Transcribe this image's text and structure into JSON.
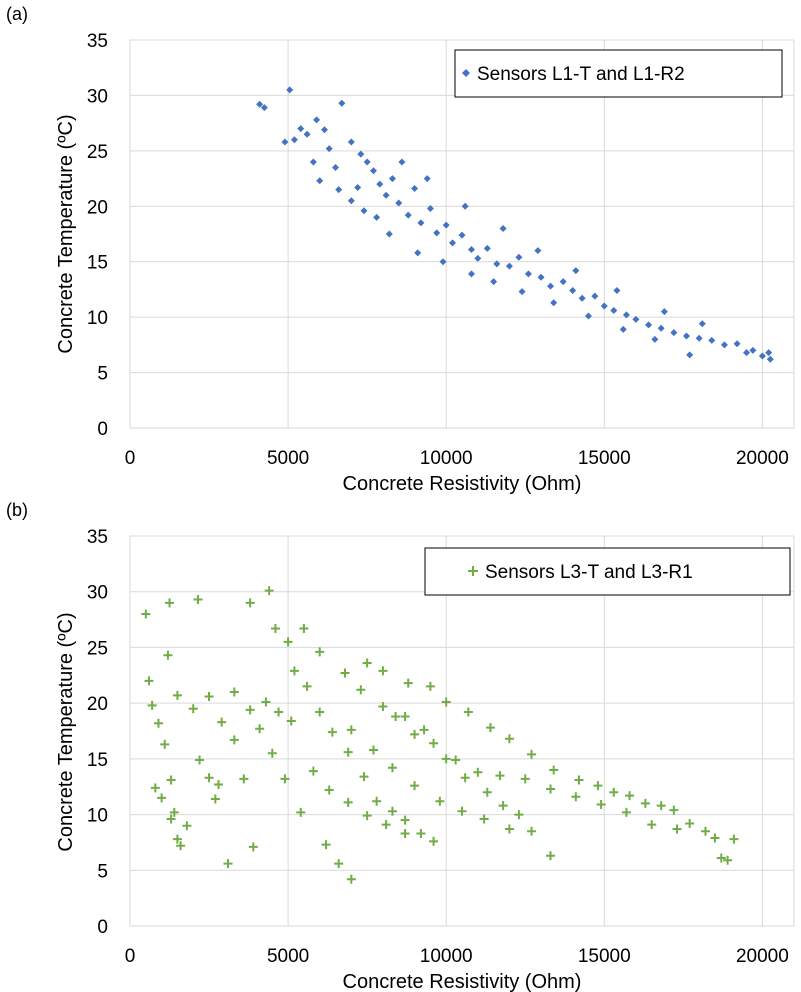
{
  "chart_data": [
    {
      "type": "scatter",
      "panel_label": "(a)",
      "xlabel": "Concrete Resistivity (Ohm)",
      "ylabel": "Concrete Temperature (ºC)",
      "xlim": [
        0,
        21000
      ],
      "ylim": [
        0,
        35
      ],
      "x_ticks": [
        0,
        5000,
        10000,
        15000,
        20000
      ],
      "y_ticks": [
        0,
        5,
        10,
        15,
        20,
        25,
        30,
        35
      ],
      "grid": true,
      "legend_position": "top-right",
      "series": [
        {
          "name": "Sensors L1-T and L1-R2",
          "marker": "diamond",
          "color": "#4472C4",
          "points": [
            [
              4100,
              29.2
            ],
            [
              4250,
              28.9
            ],
            [
              5050,
              30.5
            ],
            [
              5200,
              26.0
            ],
            [
              4900,
              25.8
            ],
            [
              5400,
              27.0
            ],
            [
              5600,
              26.5
            ],
            [
              5900,
              27.8
            ],
            [
              6150,
              26.9
            ],
            [
              6700,
              29.3
            ],
            [
              5800,
              24.0
            ],
            [
              6300,
              25.2
            ],
            [
              6500,
              23.5
            ],
            [
              6000,
              22.3
            ],
            [
              6600,
              21.5
            ],
            [
              7000,
              25.8
            ],
            [
              7300,
              24.7
            ],
            [
              7500,
              24.0
            ],
            [
              7000,
              20.5
            ],
            [
              7200,
              21.7
            ],
            [
              7400,
              19.6
            ],
            [
              7700,
              23.2
            ],
            [
              7900,
              22.0
            ],
            [
              8100,
              21.0
            ],
            [
              7800,
              19.0
            ],
            [
              8300,
              22.5
            ],
            [
              8500,
              20.3
            ],
            [
              8800,
              19.2
            ],
            [
              9000,
              21.6
            ],
            [
              9200,
              18.5
            ],
            [
              9500,
              19.8
            ],
            [
              9700,
              17.6
            ],
            [
              10000,
              18.3
            ],
            [
              10200,
              16.7
            ],
            [
              10500,
              17.4
            ],
            [
              10800,
              16.1
            ],
            [
              11000,
              15.3
            ],
            [
              11300,
              16.2
            ],
            [
              11600,
              14.8
            ],
            [
              12000,
              14.6
            ],
            [
              12300,
              15.4
            ],
            [
              12600,
              13.9
            ],
            [
              13000,
              13.6
            ],
            [
              13300,
              12.8
            ],
            [
              13700,
              13.2
            ],
            [
              14000,
              12.4
            ],
            [
              14300,
              11.7
            ],
            [
              14700,
              11.9
            ],
            [
              15000,
              11.0
            ],
            [
              15300,
              10.6
            ],
            [
              15700,
              10.2
            ],
            [
              16000,
              9.8
            ],
            [
              16400,
              9.3
            ],
            [
              16800,
              9.0
            ],
            [
              17200,
              8.6
            ],
            [
              17600,
              8.3
            ],
            [
              17700,
              6.6
            ],
            [
              18000,
              8.1
            ],
            [
              18400,
              7.9
            ],
            [
              18800,
              7.5
            ],
            [
              19200,
              7.6
            ],
            [
              19500,
              6.8
            ],
            [
              19700,
              7.0
            ],
            [
              20000,
              6.5
            ],
            [
              20200,
              6.8
            ],
            [
              20250,
              6.2
            ],
            [
              8200,
              17.5
            ],
            [
              9100,
              15.8
            ],
            [
              9900,
              15.0
            ],
            [
              10800,
              13.9
            ],
            [
              11500,
              13.2
            ],
            [
              12400,
              12.3
            ],
            [
              13400,
              11.3
            ],
            [
              14500,
              10.1
            ],
            [
              15600,
              8.9
            ],
            [
              16600,
              8.0
            ],
            [
              8600,
              24.0
            ],
            [
              9400,
              22.5
            ],
            [
              10600,
              20.0
            ],
            [
              11800,
              18.0
            ],
            [
              12900,
              16.0
            ],
            [
              14100,
              14.2
            ],
            [
              15400,
              12.4
            ],
            [
              16900,
              10.5
            ],
            [
              18100,
              9.4
            ]
          ]
        }
      ]
    },
    {
      "type": "scatter",
      "panel_label": "(b)",
      "xlabel": "Concrete Resistivity (Ohm)",
      "ylabel": "Concrete Temperature (ºC)",
      "xlim": [
        0,
        21000
      ],
      "ylim": [
        0,
        35
      ],
      "x_ticks": [
        0,
        5000,
        10000,
        15000,
        20000
      ],
      "y_ticks": [
        0,
        5,
        10,
        15,
        20,
        25,
        30,
        35
      ],
      "grid": true,
      "legend_position": "top-right",
      "series": [
        {
          "name": "Sensors L3-T and L3-R1",
          "marker": "plus",
          "color": "#70AD47",
          "points": [
            [
              500,
              28.0
            ],
            [
              1250,
              29.0
            ],
            [
              2150,
              29.3
            ],
            [
              4400,
              30.1
            ],
            [
              3800,
              29.0
            ],
            [
              4600,
              26.7
            ],
            [
              5000,
              25.5
            ],
            [
              5500,
              26.7
            ],
            [
              600,
              22.0
            ],
            [
              700,
              19.8
            ],
            [
              900,
              18.2
            ],
            [
              1100,
              16.3
            ],
            [
              1300,
              13.1
            ],
            [
              1400,
              10.2
            ],
            [
              1500,
              7.8
            ],
            [
              1600,
              7.2
            ],
            [
              1800,
              9.0
            ],
            [
              1200,
              24.3
            ],
            [
              1500,
              20.7
            ],
            [
              2000,
              19.5
            ],
            [
              2500,
              20.6
            ],
            [
              2900,
              18.3
            ],
            [
              3300,
              16.7
            ],
            [
              3600,
              13.2
            ],
            [
              3100,
              5.6
            ],
            [
              3900,
              7.1
            ],
            [
              2700,
              11.4
            ],
            [
              3300,
              21.0
            ],
            [
              3800,
              19.4
            ],
            [
              4100,
              17.7
            ],
            [
              4500,
              15.5
            ],
            [
              4900,
              13.2
            ],
            [
              5400,
              10.2
            ],
            [
              6200,
              7.3
            ],
            [
              6600,
              5.6
            ],
            [
              7000,
              4.2
            ],
            [
              5200,
              22.9
            ],
            [
              5600,
              21.5
            ],
            [
              6000,
              19.2
            ],
            [
              6400,
              17.4
            ],
            [
              6900,
              15.6
            ],
            [
              7400,
              13.4
            ],
            [
              7800,
              11.2
            ],
            [
              8300,
              10.3
            ],
            [
              8700,
              9.5
            ],
            [
              9200,
              8.3
            ],
            [
              9600,
              7.6
            ],
            [
              6000,
              24.6
            ],
            [
              6800,
              22.7
            ],
            [
              7300,
              21.2
            ],
            [
              8000,
              19.7
            ],
            [
              8700,
              18.8
            ],
            [
              9300,
              17.6
            ],
            [
              10000,
              15.0
            ],
            [
              10600,
              13.3
            ],
            [
              11300,
              12.0
            ],
            [
              11800,
              10.8
            ],
            [
              12300,
              10.0
            ],
            [
              12700,
              8.5
            ],
            [
              13300,
              6.3
            ],
            [
              7500,
              23.6
            ],
            [
              8000,
              22.9
            ],
            [
              8800,
              21.8
            ],
            [
              9500,
              21.5
            ],
            [
              10000,
              20.1
            ],
            [
              10700,
              19.2
            ],
            [
              11400,
              17.8
            ],
            [
              12000,
              16.8
            ],
            [
              12700,
              15.4
            ],
            [
              13400,
              14.0
            ],
            [
              14200,
              13.1
            ],
            [
              14800,
              12.6
            ],
            [
              15300,
              12.0
            ],
            [
              15800,
              11.7
            ],
            [
              16300,
              11.0
            ],
            [
              16800,
              10.8
            ],
            [
              17200,
              10.4
            ],
            [
              17700,
              9.2
            ],
            [
              18200,
              8.5
            ],
            [
              18500,
              7.9
            ],
            [
              18700,
              6.1
            ],
            [
              18900,
              5.9
            ],
            [
              19100,
              7.8
            ],
            [
              8400,
              18.8
            ],
            [
              9000,
              17.2
            ],
            [
              9600,
              16.4
            ],
            [
              10300,
              14.9
            ],
            [
              11000,
              13.8
            ],
            [
              11700,
              13.5
            ],
            [
              12500,
              13.2
            ],
            [
              13300,
              12.3
            ],
            [
              14100,
              11.6
            ],
            [
              14900,
              10.9
            ],
            [
              15700,
              10.2
            ],
            [
              16500,
              9.1
            ],
            [
              17300,
              8.7
            ],
            [
              800,
              12.4
            ],
            [
              1000,
              11.5
            ],
            [
              1300,
              9.6
            ],
            [
              2200,
              14.9
            ],
            [
              2500,
              13.3
            ],
            [
              2800,
              12.7
            ],
            [
              4300,
              20.1
            ],
            [
              4700,
              19.2
            ],
            [
              5100,
              18.4
            ],
            [
              5800,
              13.9
            ],
            [
              6300,
              12.2
            ],
            [
              6900,
              11.1
            ],
            [
              7500,
              9.9
            ],
            [
              8100,
              9.1
            ],
            [
              8700,
              8.3
            ],
            [
              7000,
              17.6
            ],
            [
              7700,
              15.8
            ],
            [
              8300,
              14.2
            ],
            [
              9000,
              12.6
            ],
            [
              9800,
              11.2
            ],
            [
              10500,
              10.3
            ],
            [
              11200,
              9.6
            ],
            [
              12000,
              8.7
            ]
          ]
        }
      ]
    }
  ]
}
